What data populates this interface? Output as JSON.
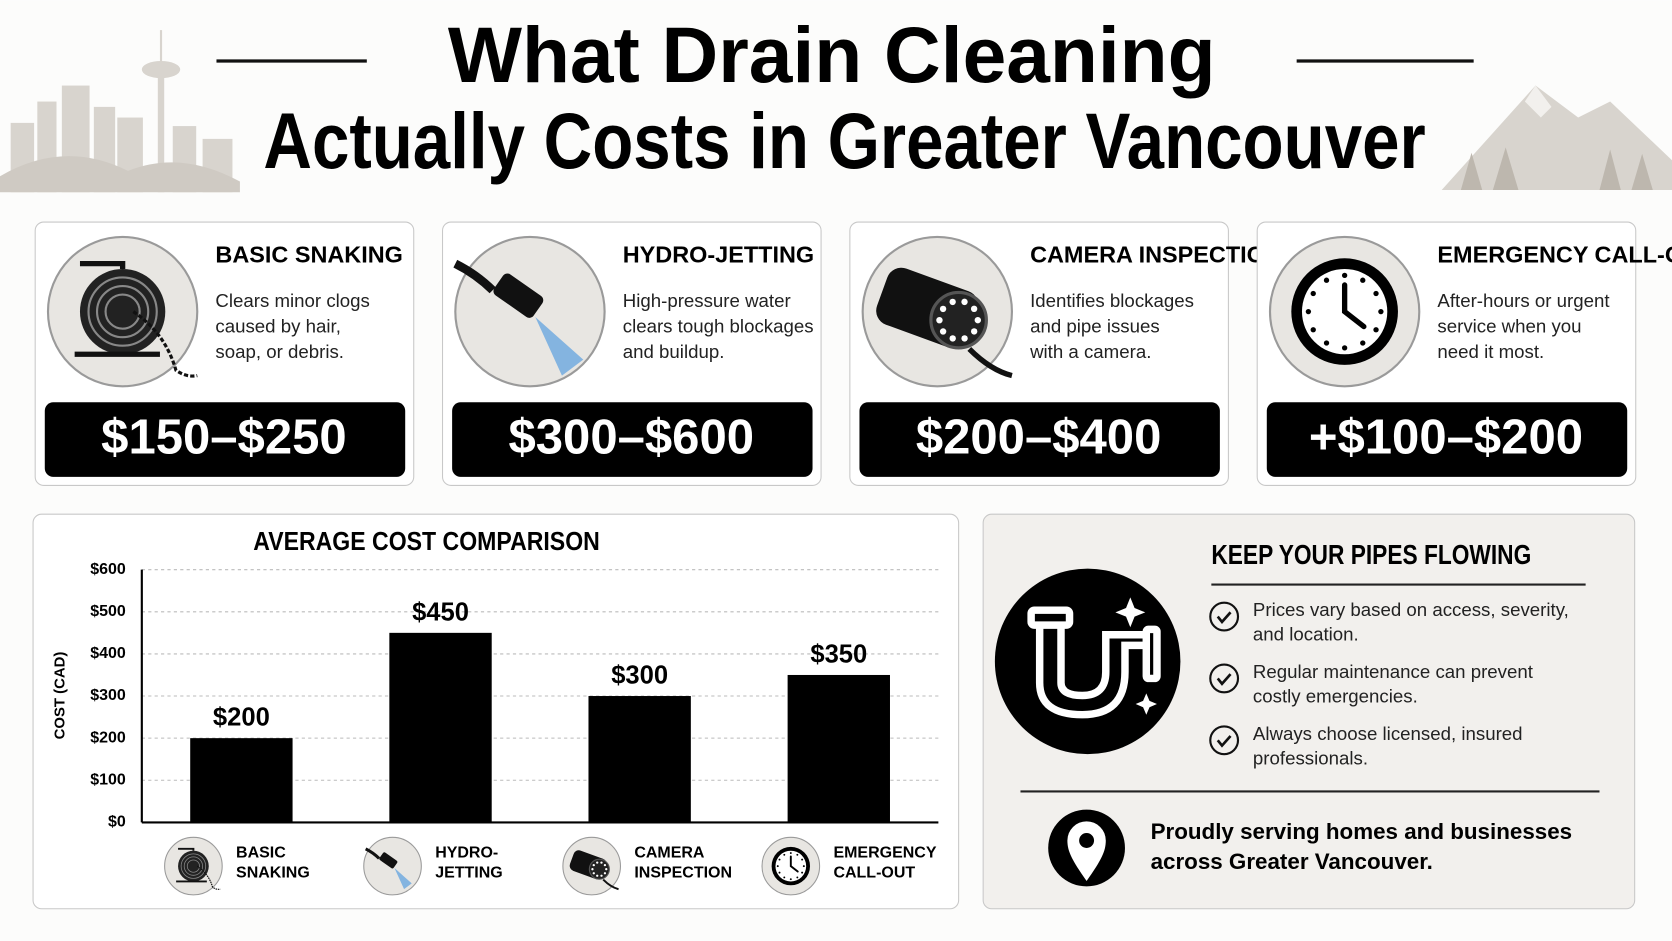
{
  "header": {
    "title_lines": [
      "What Drain Cleaning",
      "Actually Costs in Greater Vancouver"
    ]
  },
  "cards": [
    {
      "title": "BASIC SNAKING",
      "description": [
        "Clears minor clogs",
        "caused by hair,",
        "soap, or debris."
      ],
      "price": "$150–$250"
    },
    {
      "title": "HYDRO-JETTING",
      "description": [
        "High-pressure water",
        "clears tough blockages",
        "and buildup."
      ],
      "price": "$300–$600"
    },
    {
      "title": "CAMERA INSPECTION",
      "description": [
        "Identifies blockages",
        "and pipe issues",
        "with a camera."
      ],
      "price": "$200–$400"
    },
    {
      "title": "EMERGENCY CALL-OUT",
      "description": [
        "After-hours or urgent",
        "service when you",
        "need it most."
      ],
      "price": "+$100–$200"
    }
  ],
  "chart_data": {
    "type": "bar",
    "title": "AVERAGE COST COMPARISON",
    "y_label": "COST (CAD)",
    "categories": [
      "BASIC SNAKING",
      "HYDRO-JETTING",
      "CAMERA INSPECTION",
      "EMERGENCY CALL-OUT"
    ],
    "values": [
      200,
      450,
      300,
      350
    ],
    "value_labels": [
      "$200",
      "$450",
      "$300",
      "$350"
    ],
    "color": "#000000",
    "ylim": [
      0,
      600
    ],
    "yticks": [
      {
        "value": 0,
        "label": "$0"
      },
      {
        "value": 100,
        "label": "$100"
      },
      {
        "value": 200,
        "label": "$200"
      },
      {
        "value": 300,
        "label": "$300"
      },
      {
        "value": 400,
        "label": "$400"
      },
      {
        "value": 500,
        "label": "$500"
      },
      {
        "value": 600,
        "label": "$600"
      }
    ],
    "grid": true
  },
  "tips": {
    "title": "KEEP YOUR PIPES FLOWING",
    "items": [
      [
        "Prices vary based on access, severity,",
        "and location."
      ],
      [
        "Regular maintenance can prevent",
        "costly emergencies."
      ],
      [
        "Always choose licensed, insured",
        "professionals."
      ]
    ],
    "footer": [
      "Proudly serving homes and businesses",
      "across Greater Vancouver."
    ]
  }
}
